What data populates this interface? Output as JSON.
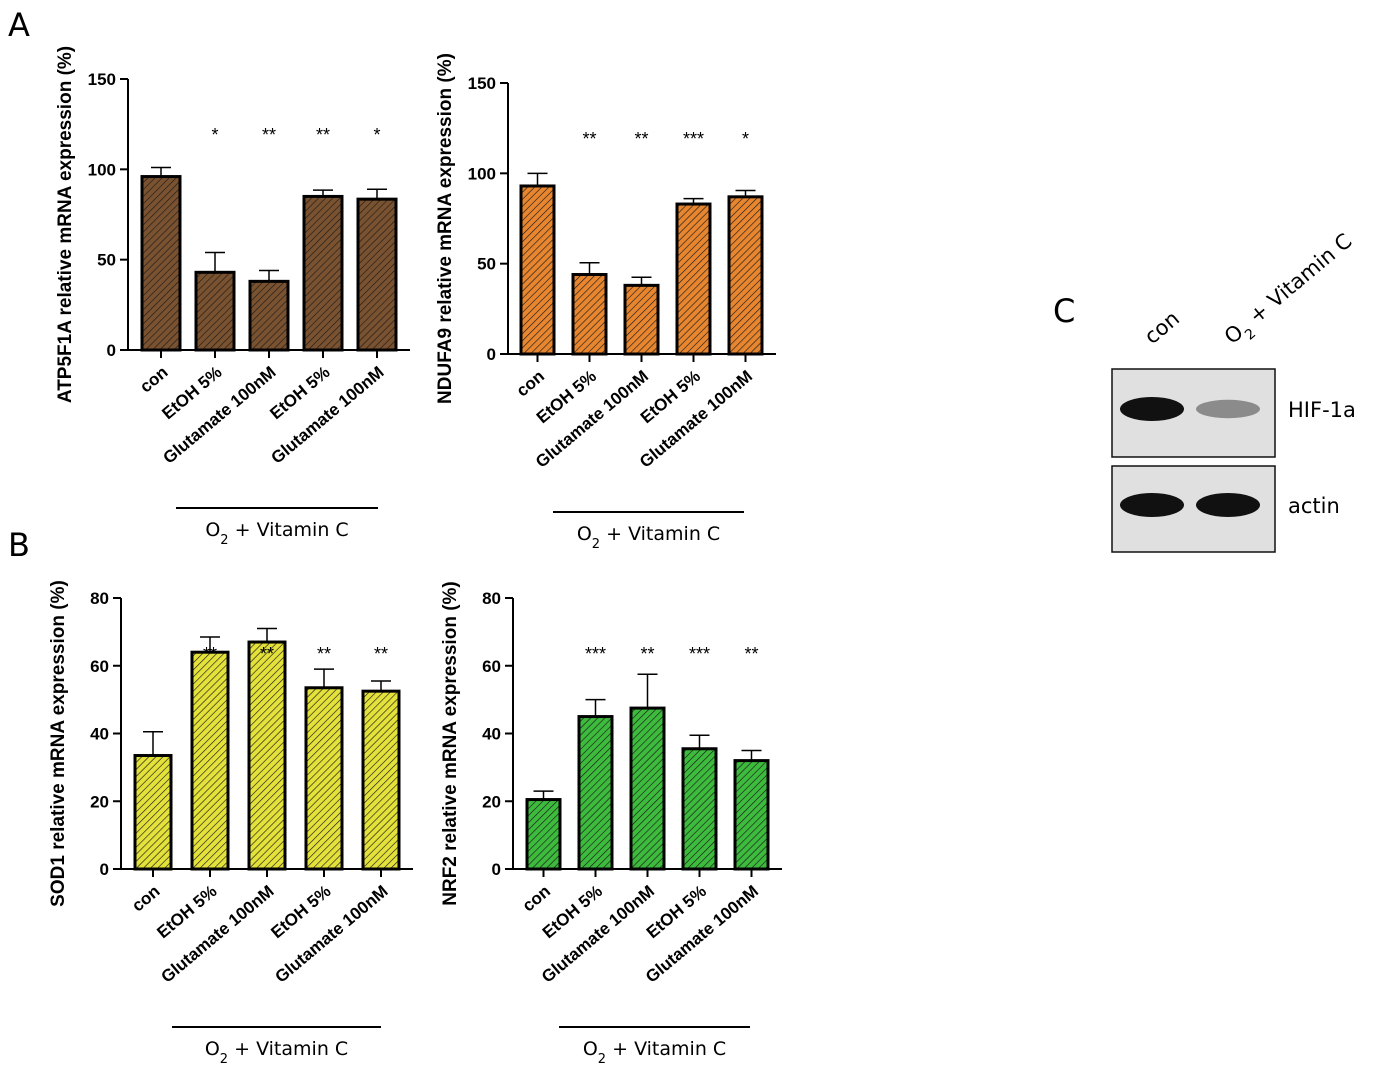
{
  "panel_labels": {
    "a": "A",
    "b": "B",
    "c": "C"
  },
  "group_label": {
    "prefix": "O",
    "sub": "2",
    "suffix": " + Vitamin C"
  },
  "chart_data": [
    {
      "id": "atp5f1a",
      "type": "bar",
      "ylabel": "ATP5F1A relative mRNA expression (%)",
      "ylim": [
        0,
        150
      ],
      "yticks": [
        0,
        50,
        100,
        150
      ],
      "categories": [
        "con",
        "EtOH 5%",
        "Glutamate 100nM",
        "EtOH 5%",
        "Glutamate 100nM"
      ],
      "values": [
        96,
        43,
        38,
        85,
        83.5
      ],
      "errors": [
        5,
        11,
        6,
        3.5,
        5.5
      ],
      "significance": [
        "",
        "*",
        "**",
        "**",
        "*"
      ],
      "color": "#7a5230",
      "group_bracket": {
        "from_index": 1,
        "to_index": 4
      }
    },
    {
      "id": "ndufa9",
      "type": "bar",
      "ylabel": "NDUFA9 relative mRNA expression (%)",
      "ylim": [
        0,
        150
      ],
      "yticks": [
        0,
        50,
        100,
        150
      ],
      "categories": [
        "con",
        "EtOH 5%",
        "Glutamate 100nM",
        "EtOH 5%",
        "Glutamate 100nM"
      ],
      "values": [
        93,
        44,
        38,
        83,
        87
      ],
      "errors": [
        7,
        6.5,
        4.5,
        3,
        3.5
      ],
      "significance": [
        "",
        "**",
        "**",
        "***",
        "*"
      ],
      "color": "#e8862f",
      "group_bracket": {
        "from_index": 1,
        "to_index": 4
      }
    },
    {
      "id": "sod1",
      "type": "bar",
      "ylabel": "SOD1 relative mRNA expression (%)",
      "ylim": [
        0,
        80
      ],
      "yticks": [
        0,
        20,
        40,
        60,
        80
      ],
      "categories": [
        "con",
        "EtOH 5%",
        "Glutamate 100nM",
        "EtOH 5%",
        "Glutamate 100nM"
      ],
      "values": [
        33.5,
        64,
        67,
        53.5,
        52.5
      ],
      "errors": [
        7,
        4.5,
        4,
        5.5,
        3
      ],
      "significance": [
        "",
        "**",
        "**",
        "**",
        "**"
      ],
      "color": "#e4e23a",
      "group_bracket": {
        "from_index": 1,
        "to_index": 4
      }
    },
    {
      "id": "nrf2",
      "type": "bar",
      "ylabel": "NRF2 relative mRNA expression (%)",
      "ylim": [
        0,
        80
      ],
      "yticks": [
        0,
        20,
        40,
        60,
        80
      ],
      "categories": [
        "con",
        "EtOH 5%",
        "Glutamate 100nM",
        "EtOH 5%",
        "Glutamate 100nM"
      ],
      "values": [
        20.5,
        45,
        47.5,
        35.5,
        32
      ],
      "errors": [
        2.5,
        5,
        10,
        4,
        3
      ],
      "significance": [
        "",
        "***",
        "**",
        "***",
        "**"
      ],
      "color": "#3dbb3d",
      "group_bracket": {
        "from_index": 1,
        "to_index": 4
      }
    }
  ],
  "blot": {
    "columns": {
      "con": "con",
      "treat_prefix": "O",
      "treat_sub": "2",
      "treat_suffix": " + Vitamin C"
    },
    "rows": [
      {
        "label": "HIF-1a",
        "intensities": [
          1.0,
          0.3
        ]
      },
      {
        "label": "actin",
        "intensities": [
          1.0,
          1.0
        ]
      }
    ]
  }
}
